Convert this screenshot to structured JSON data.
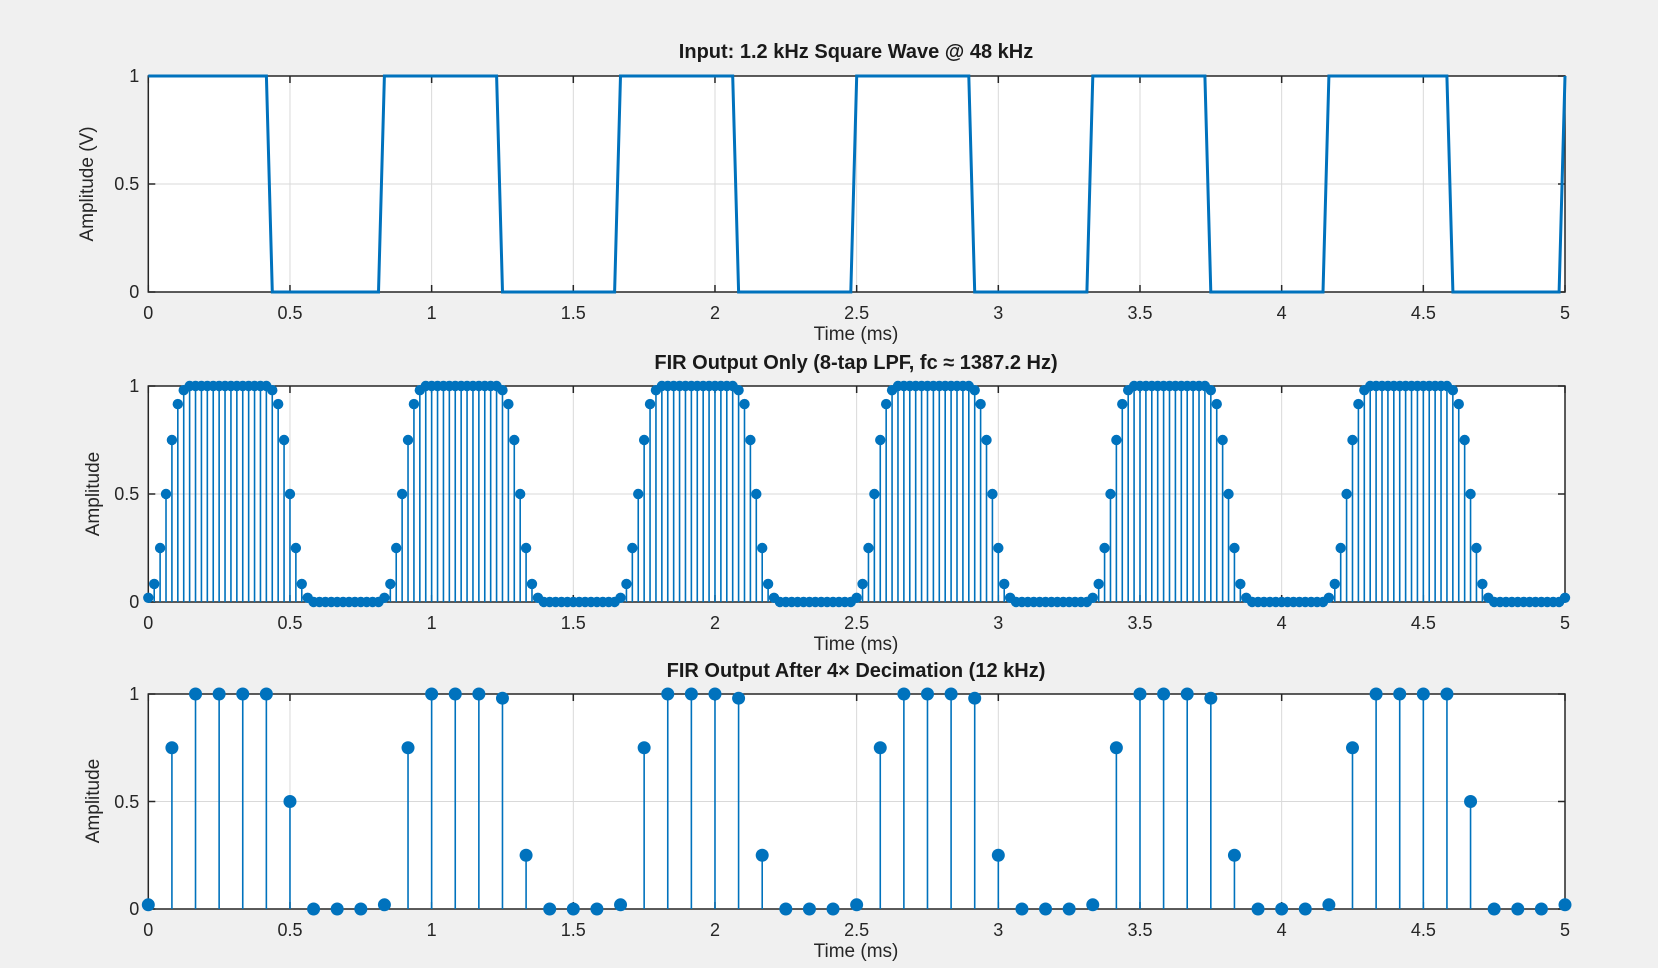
{
  "figure": {
    "background": "#f0f0f0",
    "accent_blue": "#0072BD",
    "axis_color": "#262626",
    "grid_color": "#d9d9d9",
    "plot_bg": "#ffffff"
  },
  "chart_data": [
    {
      "type": "line",
      "title": "Input: 1.2 kHz Square Wave @ 48 kHz",
      "xlabel": "Time (ms)",
      "ylabel": "Amplitude (V)",
      "xlim": [
        0,
        5
      ],
      "ylim": [
        0,
        1
      ],
      "xticks": [
        0,
        0.5,
        1,
        1.5,
        2,
        2.5,
        3,
        3.5,
        4,
        4.5,
        5
      ],
      "xtick_labels": [
        "0",
        "0.5",
        "1",
        "1.5",
        "2",
        "2.5",
        "3",
        "3.5",
        "4",
        "4.5",
        "5"
      ],
      "yticks": [
        0,
        0.5,
        1
      ],
      "ytick_labels": [
        "0",
        "0.5",
        "1"
      ],
      "grid": true,
      "breakpoints": [
        [
          0,
          1
        ],
        [
          0.4167,
          1
        ],
        [
          0.4375,
          0
        ],
        [
          0.8125,
          0
        ],
        [
          0.8333,
          1
        ],
        [
          1.2292,
          1
        ],
        [
          1.25,
          0
        ],
        [
          1.6458,
          0
        ],
        [
          1.6667,
          1
        ],
        [
          2.0625,
          1
        ],
        [
          2.0833,
          0
        ],
        [
          2.4792,
          0
        ],
        [
          2.5,
          1
        ],
        [
          2.8958,
          1
        ],
        [
          2.9167,
          0
        ],
        [
          3.3125,
          0
        ],
        [
          3.3333,
          1
        ],
        [
          3.7292,
          1
        ],
        [
          3.75,
          0
        ],
        [
          4.1458,
          0
        ],
        [
          4.1667,
          1
        ],
        [
          4.5833,
          1
        ],
        [
          4.6042,
          0
        ],
        [
          4.9792,
          0
        ],
        [
          5,
          1
        ]
      ]
    },
    {
      "type": "stem",
      "title": "FIR Output Only (8-tap LPF, fc ≈ 1387.2 Hz)",
      "xlabel": "Time (ms)",
      "ylabel": "Amplitude",
      "xlim": [
        0,
        5
      ],
      "ylim": [
        0,
        1
      ],
      "xticks": [
        0,
        0.5,
        1,
        1.5,
        2,
        2.5,
        3,
        3.5,
        4,
        4.5,
        5
      ],
      "xtick_labels": [
        "0",
        "0.5",
        "1",
        "1.5",
        "2",
        "2.5",
        "3",
        "3.5",
        "4",
        "4.5",
        "5"
      ],
      "yticks": [
        0,
        0.5,
        1
      ],
      "ytick_labels": [
        "0",
        "0.5",
        "1"
      ],
      "grid": true,
      "sample_period_ms": 0.0208333,
      "values": [
        0.0196,
        0.0837,
        0.25,
        0.5,
        0.75,
        0.9163,
        0.9804,
        1,
        1,
        1,
        1,
        1,
        1,
        1,
        1,
        1,
        1,
        1,
        1,
        1,
        1,
        0.9804,
        0.9163,
        0.75,
        0.5,
        0.25,
        0.0837,
        0.0196,
        0,
        0,
        0,
        0,
        0,
        0,
        0,
        0,
        0,
        0,
        0,
        0,
        0.0196,
        0.0837,
        0.25,
        0.5,
        0.75,
        0.9163,
        0.9804,
        1,
        1,
        1,
        1,
        1,
        1,
        1,
        1,
        1,
        1,
        1,
        1,
        1,
        0.9804,
        0.9163,
        0.75,
        0.5,
        0.25,
        0.0837,
        0.0196,
        0,
        0,
        0,
        0,
        0,
        0,
        0,
        0,
        0,
        0,
        0,
        0,
        0,
        0.0196,
        0.0837,
        0.25,
        0.5,
        0.75,
        0.9163,
        0.9804,
        1,
        1,
        1,
        1,
        1,
        1,
        1,
        1,
        1,
        1,
        1,
        1,
        1,
        0.9804,
        0.9163,
        0.75,
        0.5,
        0.25,
        0.0837,
        0.0196,
        0,
        0,
        0,
        0,
        0,
        0,
        0,
        0,
        0,
        0,
        0,
        0,
        0,
        0.0196,
        0.0837,
        0.25,
        0.5,
        0.75,
        0.9163,
        0.9804,
        1,
        1,
        1,
        1,
        1,
        1,
        1,
        1,
        1,
        1,
        1,
        1,
        1,
        0.9804,
        0.9163,
        0.75,
        0.5,
        0.25,
        0.0837,
        0.0196,
        0,
        0,
        0,
        0,
        0,
        0,
        0,
        0,
        0,
        0,
        0,
        0,
        0,
        0.0196,
        0.0837,
        0.25,
        0.5,
        0.75,
        0.9163,
        0.9804,
        1,
        1,
        1,
        1,
        1,
        1,
        1,
        1,
        1,
        1,
        1,
        1,
        1,
        0.9804,
        0.9163,
        0.75,
        0.5,
        0.25,
        0.0837,
        0.0196,
        0,
        0,
        0,
        0,
        0,
        0,
        0,
        0,
        0,
        0,
        0,
        0,
        0,
        0.0196,
        0.0837,
        0.25,
        0.5,
        0.75,
        0.9163,
        0.9804,
        1,
        1,
        1,
        1,
        1,
        1,
        1,
        1,
        1,
        1,
        1,
        1,
        1,
        1,
        0.9804,
        0.9163,
        0.75,
        0.5,
        0.25,
        0.0837,
        0.0196,
        0,
        0,
        0,
        0,
        0,
        0,
        0,
        0,
        0,
        0,
        0,
        0,
        0.0196
      ]
    },
    {
      "type": "stem",
      "title": "FIR Output After 4× Decimation (12 kHz)",
      "xlabel": "Time (ms)",
      "ylabel": "Amplitude",
      "xlim": [
        0,
        5
      ],
      "ylim": [
        0,
        1
      ],
      "xticks": [
        0,
        0.5,
        1,
        1.5,
        2,
        2.5,
        3,
        3.5,
        4,
        4.5,
        5
      ],
      "xtick_labels": [
        "0",
        "0.5",
        "1",
        "1.5",
        "2",
        "2.5",
        "3",
        "3.5",
        "4",
        "4.5",
        "5"
      ],
      "yticks": [
        0,
        0.5,
        1
      ],
      "ytick_labels": [
        "0",
        "0.5",
        "1"
      ],
      "grid": true,
      "sample_period_ms": 0.0833333,
      "values": [
        0.0196,
        0.75,
        1,
        1,
        1,
        1,
        0.5,
        0,
        0,
        0,
        0.0196,
        0.75,
        1,
        1,
        1,
        0.9804,
        0.25,
        0,
        0,
        0,
        0.0196,
        0.75,
        1,
        1,
        1,
        0.9804,
        0.25,
        0,
        0,
        0,
        0.0196,
        0.75,
        1,
        1,
        1,
        0.9804,
        0.25,
        0,
        0,
        0,
        0.0196,
        0.75,
        1,
        1,
        1,
        0.9804,
        0.25,
        0,
        0,
        0,
        0.0196,
        0.75,
        1,
        1,
        1,
        1,
        0.5,
        0,
        0,
        0,
        0.0196
      ]
    }
  ]
}
